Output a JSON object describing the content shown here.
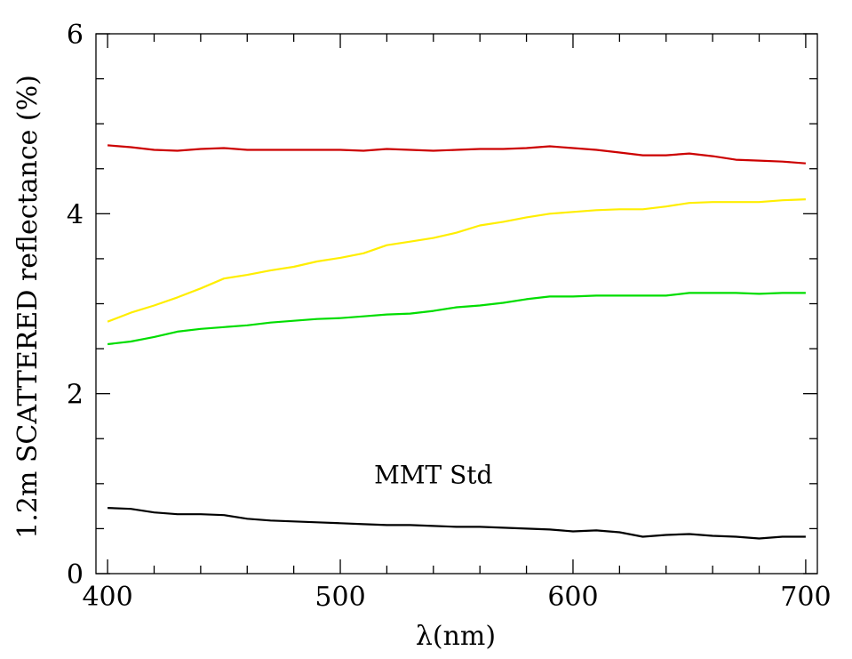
{
  "chart_data": {
    "type": "line",
    "title": "",
    "xlabel": "λ(nm)",
    "ylabel": "1.2m SCATTERED reflectance (%)",
    "xlim": [
      395,
      705
    ],
    "ylim": [
      0,
      6
    ],
    "x_ticks": [
      400,
      500,
      600,
      700
    ],
    "y_ticks": [
      0,
      2,
      4,
      6
    ],
    "x_minor_step": 20,
    "y_minor_step": 0.5,
    "grid": false,
    "annotations": [
      {
        "text": "MMT Std",
        "x": 540,
        "y": 1.1
      }
    ],
    "series": [
      {
        "name": "red",
        "color": "#cc0000",
        "x": [
          400,
          410,
          420,
          430,
          440,
          450,
          460,
          470,
          480,
          490,
          500,
          510,
          520,
          530,
          540,
          550,
          560,
          570,
          580,
          590,
          600,
          610,
          620,
          630,
          640,
          650,
          660,
          670,
          680,
          690,
          700
        ],
        "y": [
          4.76,
          4.74,
          4.71,
          4.7,
          4.72,
          4.73,
          4.71,
          4.71,
          4.71,
          4.71,
          4.71,
          4.7,
          4.72,
          4.71,
          4.7,
          4.71,
          4.72,
          4.72,
          4.73,
          4.75,
          4.73,
          4.71,
          4.68,
          4.65,
          4.65,
          4.67,
          4.64,
          4.6,
          4.59,
          4.58,
          4.56
        ]
      },
      {
        "name": "yellow",
        "color": "#ffee00",
        "x": [
          400,
          410,
          420,
          430,
          440,
          450,
          460,
          470,
          480,
          490,
          500,
          510,
          520,
          530,
          540,
          550,
          560,
          570,
          580,
          590,
          600,
          610,
          620,
          630,
          640,
          650,
          660,
          670,
          680,
          690,
          700
        ],
        "y": [
          2.8,
          2.9,
          2.98,
          3.07,
          3.17,
          3.28,
          3.32,
          3.37,
          3.41,
          3.47,
          3.51,
          3.56,
          3.65,
          3.69,
          3.73,
          3.79,
          3.87,
          3.91,
          3.96,
          4.0,
          4.02,
          4.04,
          4.05,
          4.05,
          4.08,
          4.12,
          4.13,
          4.13,
          4.13,
          4.15,
          4.16
        ]
      },
      {
        "name": "green",
        "color": "#00dd00",
        "x": [
          400,
          410,
          420,
          430,
          440,
          450,
          460,
          470,
          480,
          490,
          500,
          510,
          520,
          530,
          540,
          550,
          560,
          570,
          580,
          590,
          600,
          610,
          620,
          630,
          640,
          650,
          660,
          670,
          680,
          690,
          700
        ],
        "y": [
          2.55,
          2.58,
          2.63,
          2.69,
          2.72,
          2.74,
          2.76,
          2.79,
          2.81,
          2.83,
          2.84,
          2.86,
          2.88,
          2.89,
          2.92,
          2.96,
          2.98,
          3.01,
          3.05,
          3.08,
          3.08,
          3.09,
          3.09,
          3.09,
          3.09,
          3.12,
          3.12,
          3.12,
          3.11,
          3.12,
          3.12
        ]
      },
      {
        "name": "black",
        "color": "#000000",
        "x": [
          400,
          410,
          420,
          430,
          440,
          450,
          460,
          470,
          480,
          490,
          500,
          510,
          520,
          530,
          540,
          550,
          560,
          570,
          580,
          590,
          600,
          610,
          620,
          630,
          640,
          650,
          660,
          670,
          680,
          690,
          700
        ],
        "y": [
          0.73,
          0.72,
          0.68,
          0.66,
          0.66,
          0.65,
          0.61,
          0.59,
          0.58,
          0.57,
          0.56,
          0.55,
          0.54,
          0.54,
          0.53,
          0.52,
          0.52,
          0.51,
          0.5,
          0.49,
          0.47,
          0.48,
          0.46,
          0.41,
          0.43,
          0.44,
          0.42,
          0.41,
          0.39,
          0.41,
          0.41
        ]
      }
    ]
  }
}
